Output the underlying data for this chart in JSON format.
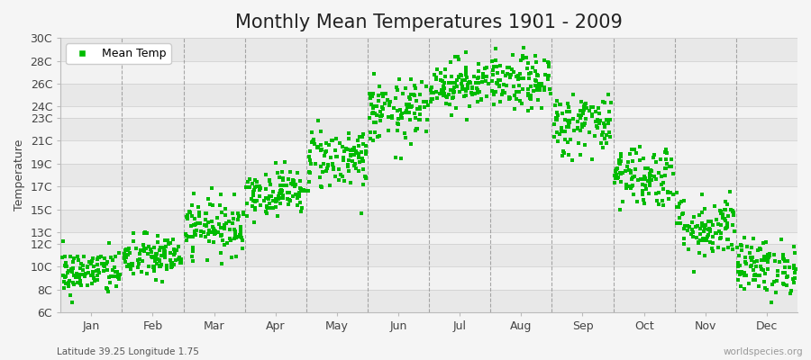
{
  "title": "Monthly Mean Temperatures 1901 - 2009",
  "ylabel": "Temperature",
  "xlabel_bottom_left": "Latitude 39.25 Longitude 1.75",
  "xlabel_bottom_right": "worldspecies.org",
  "legend_label": "Mean Temp",
  "dot_color": "#00bb00",
  "background_color": "#f5f5f5",
  "plot_bg_color": "#ffffff",
  "band_color_dark": "#e8e8e8",
  "band_color_light": "#f2f2f2",
  "grid_line_color": "#cccccc",
  "vline_color": "#888888",
  "ytick_labels": [
    "6C",
    "8C",
    "10C",
    "12C",
    "13C",
    "15C",
    "17C",
    "19C",
    "21C",
    "23C",
    "24C",
    "26C",
    "28C",
    "30C"
  ],
  "ytick_values": [
    6,
    8,
    10,
    12,
    13,
    15,
    17,
    19,
    21,
    23,
    24,
    26,
    28,
    30
  ],
  "month_names": [
    "Jan",
    "Feb",
    "Mar",
    "Apr",
    "May",
    "Jun",
    "Jul",
    "Aug",
    "Sep",
    "Oct",
    "Nov",
    "Dec"
  ],
  "month_means": [
    9.5,
    10.8,
    13.5,
    16.5,
    19.5,
    23.5,
    26.0,
    26.0,
    22.5,
    18.0,
    13.5,
    10.0
  ],
  "month_stds": [
    1.0,
    1.0,
    1.2,
    1.0,
    1.4,
    1.4,
    1.1,
    1.2,
    1.4,
    1.4,
    1.4,
    1.2
  ],
  "n_years": 109,
  "random_seed": 42,
  "dot_size": 6,
  "dot_alpha": 1.0,
  "ylim_min": 6,
  "ylim_max": 30,
  "title_fontsize": 15,
  "axis_fontsize": 9,
  "tick_fontsize": 9,
  "dpi": 100
}
